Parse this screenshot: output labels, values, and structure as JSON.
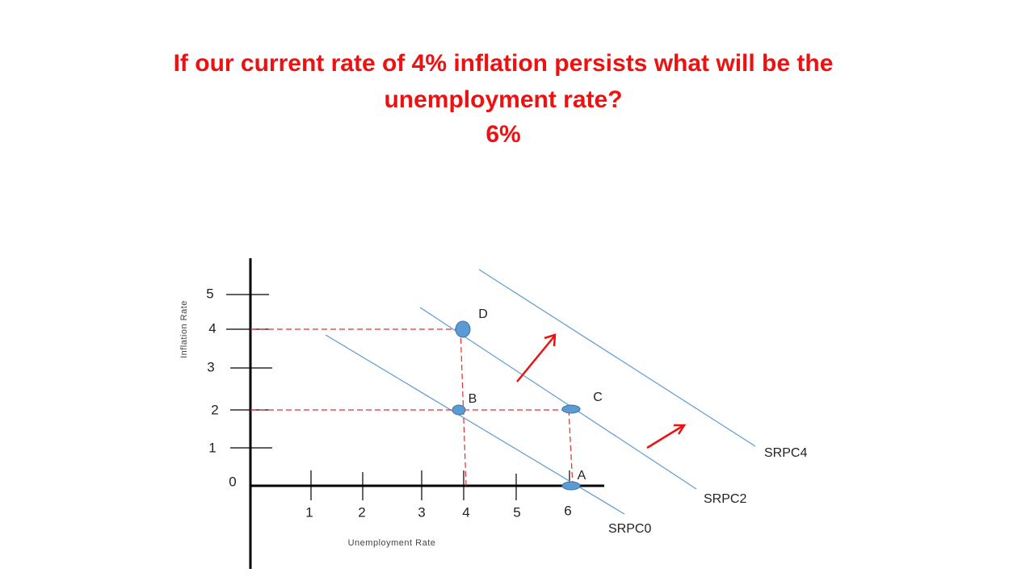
{
  "title": {
    "lines": [
      "If our current rate of 4% inflation persists what will be the",
      "unemployment rate?",
      "6%"
    ]
  },
  "axes": {
    "y_label": "Inflation Rate",
    "x_label": "Unemployment Rate",
    "y_ticks": [
      "5",
      "4",
      "3",
      "2",
      "1",
      "0"
    ],
    "x_ticks": [
      "1",
      "2",
      "3",
      "4",
      "5",
      "6"
    ]
  },
  "curves": [
    "SRPC0",
    "SRPC2",
    "SRPC4"
  ],
  "points": [
    "D",
    "B",
    "C",
    "A"
  ]
}
